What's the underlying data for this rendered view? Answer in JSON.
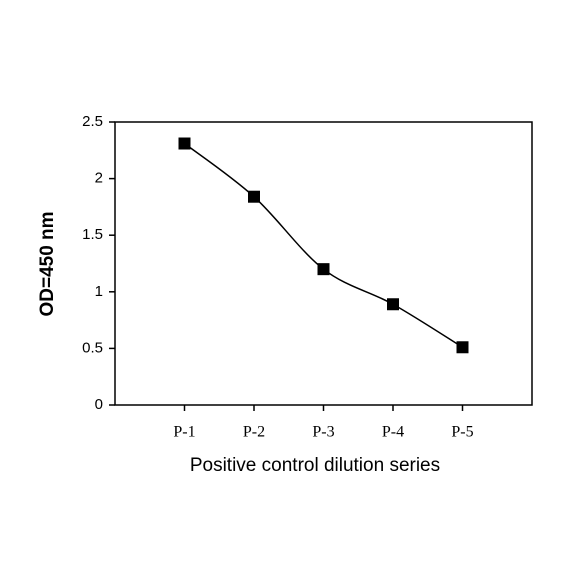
{
  "chart_data": {
    "type": "line",
    "x_label": "Positive control dilution series",
    "y_label": "OD=450 nm",
    "categories": [
      "P-1",
      "P-2",
      "P-3",
      "P-4",
      "P-5"
    ],
    "series": [
      {
        "name": "OD",
        "color": "#000000",
        "values": [
          2.31,
          1.84,
          1.2,
          0.89,
          0.51
        ]
      }
    ],
    "ylim": [
      0,
      2.5
    ],
    "yticks": [
      0,
      0.5,
      1,
      1.5,
      2,
      2.5
    ],
    "grid": false
  }
}
